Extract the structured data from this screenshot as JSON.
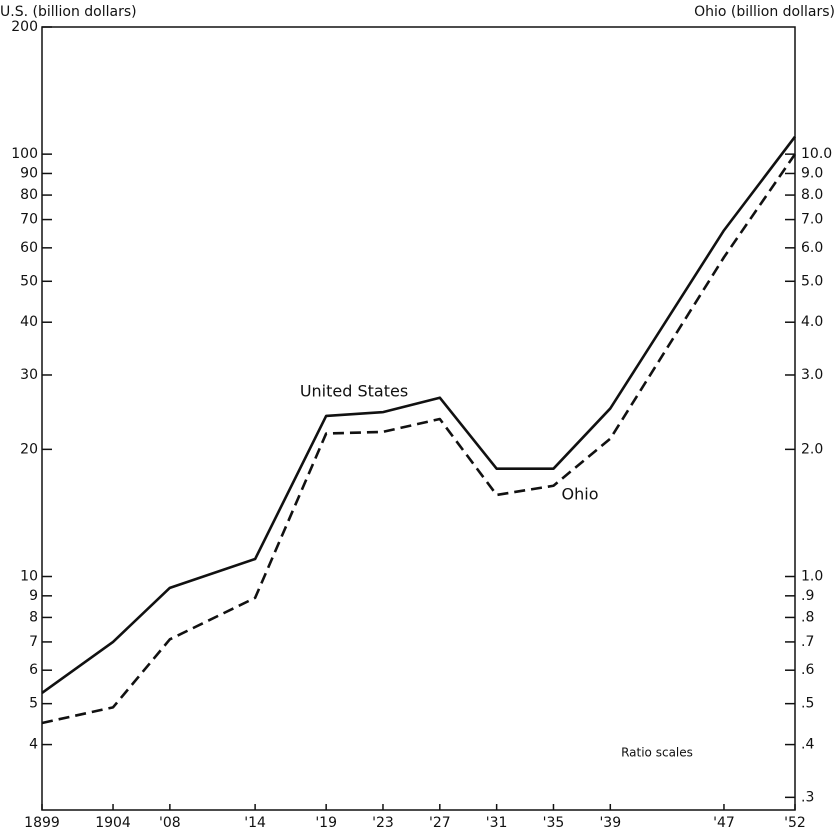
{
  "chart_data": {
    "type": "line",
    "y_label": "U.S. (billion dollars)",
    "y2_label": "Ohio (billion dollars)",
    "annotations": [
      "United States",
      "Ohio",
      "Ratio scales"
    ],
    "log_scale": true,
    "x": [
      1899,
      1904,
      1908,
      1914,
      1919,
      1923,
      1927,
      1931,
      1935,
      1939,
      1947,
      1952
    ],
    "xlim": [
      1899,
      1952
    ],
    "xticks": [
      {
        "value": 1899,
        "label": "1899"
      },
      {
        "value": 1904,
        "label": "1904"
      },
      {
        "value": 1908,
        "label": "'08"
      },
      {
        "value": 1914,
        "label": "'14"
      },
      {
        "value": 1919,
        "label": "'19"
      },
      {
        "value": 1923,
        "label": "'23"
      },
      {
        "value": 1927,
        "label": "'27"
      },
      {
        "value": 1931,
        "label": "'31"
      },
      {
        "value": 1935,
        "label": "'35"
      },
      {
        "value": 1939,
        "label": "'39"
      },
      {
        "value": 1947,
        "label": "'47"
      },
      {
        "value": 1952,
        "label": "'52"
      }
    ],
    "ylim": [
      2.8,
      200
    ],
    "yticks": [
      200,
      100,
      90,
      80,
      70,
      60,
      50,
      40,
      30,
      20,
      10,
      9,
      8,
      7,
      6,
      5,
      4
    ],
    "y2lim": [
      0.28,
      20
    ],
    "y2ticks": [
      {
        "value": 10,
        "label": "10.0"
      },
      {
        "value": 9,
        "label": "9.0"
      },
      {
        "value": 8,
        "label": "8.0"
      },
      {
        "value": 7,
        "label": "7.0"
      },
      {
        "value": 6,
        "label": "6.0"
      },
      {
        "value": 5,
        "label": "5.0"
      },
      {
        "value": 4,
        "label": "4.0"
      },
      {
        "value": 3,
        "label": "3.0"
      },
      {
        "value": 2,
        "label": "2.0"
      },
      {
        "value": 1,
        "label": "1.0"
      },
      {
        "value": 0.9,
        "label": ".9"
      },
      {
        "value": 0.8,
        "label": ".8"
      },
      {
        "value": 0.7,
        "label": ".7"
      },
      {
        "value": 0.6,
        "label": ".6"
      },
      {
        "value": 0.5,
        "label": ".5"
      },
      {
        "value": 0.4,
        "label": ".4"
      },
      {
        "value": 0.3,
        "label": ".3"
      }
    ],
    "series": [
      {
        "name": "United States",
        "color": "#111111",
        "line_style": "solid",
        "axis": "y",
        "values": [
          5.3,
          7.0,
          9.4,
          11,
          24,
          24.5,
          26.5,
          18,
          18,
          25,
          66,
          110
        ]
      },
      {
        "name": "Ohio",
        "color": "#111111",
        "line_style": "dashed",
        "axis": "y2",
        "values": [
          0.45,
          0.49,
          0.71,
          0.89,
          2.18,
          2.2,
          2.36,
          1.56,
          1.64,
          2.12,
          5.7,
          10.0
        ]
      }
    ]
  }
}
